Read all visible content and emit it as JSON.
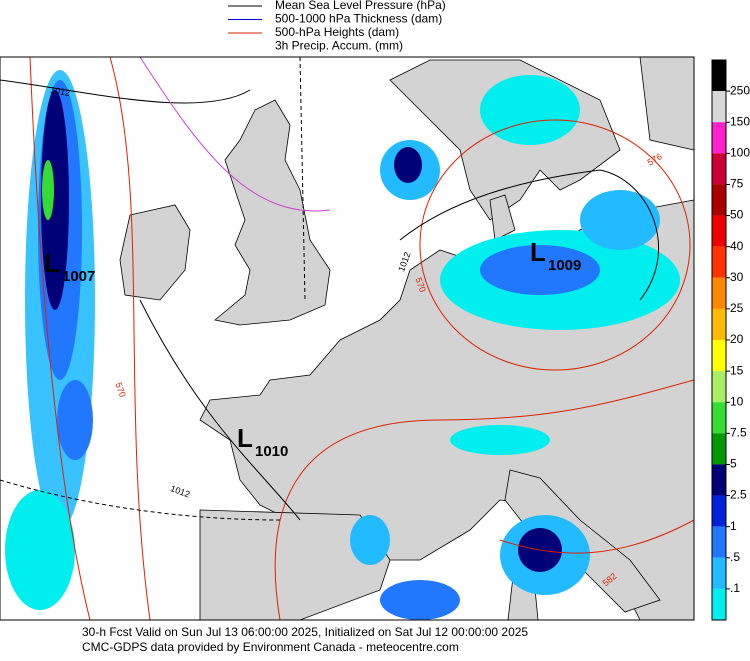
{
  "legend": [
    {
      "label": "Mean Sea Level Pressure (hPa)",
      "color": "#000000"
    },
    {
      "label": "500-1000 hPa Thickness (dam)",
      "color": "#0000cc"
    },
    {
      "label": "500-hPa Heights (dam)",
      "color": "#dd2200"
    },
    {
      "label": "3h Precip. Accum. (mm)"
    }
  ],
  "lows": [
    {
      "symbol": "L",
      "pressure": "1007"
    },
    {
      "symbol": "L",
      "pressure": "1009"
    },
    {
      "symbol": "L",
      "pressure": "1010"
    }
  ],
  "contour_labels": [
    "1012",
    "1012",
    "1012",
    "570",
    "570",
    "576",
    "582"
  ],
  "colorbar": {
    "labels": [
      "250",
      "150",
      "100",
      "75",
      "50",
      "40",
      "30",
      "25",
      "20",
      "15",
      "10",
      "7.5",
      "5",
      "2.5",
      "1",
      ".5",
      ".1"
    ],
    "colors": [
      "#000000",
      "#d8d8d8",
      "#ff22cc",
      "#cc0033",
      "#aa0000",
      "#ee0000",
      "#ff3300",
      "#ff8800",
      "#ffbb00",
      "#ffff00",
      "#aaee66",
      "#33dd33",
      "#009900",
      "#000077",
      "#0022dd",
      "#2277ff",
      "#22bbff",
      "#00eeee"
    ]
  },
  "footer": [
    "30-h Fcst Valid on Sun Jul 13 06:00:00 2025, Initialized on Sat Jul 12 00:00:00 2025",
    "CMC-GDPS data provided by Environment Canada - meteocentre.com"
  ]
}
